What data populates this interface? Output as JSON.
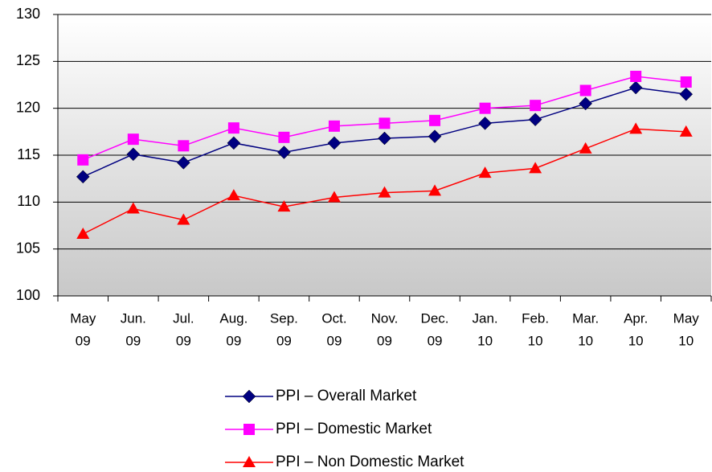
{
  "chart_data": {
    "type": "line",
    "categories": [
      [
        "May",
        "09"
      ],
      [
        "Jun.",
        "09"
      ],
      [
        "Jul.",
        "09"
      ],
      [
        "Aug.",
        "09"
      ],
      [
        "Sep.",
        "09"
      ],
      [
        "Oct.",
        "09"
      ],
      [
        "Nov.",
        "09"
      ],
      [
        "Dec.",
        "09"
      ],
      [
        "Jan.",
        "10"
      ],
      [
        "Feb.",
        "10"
      ],
      [
        "Mar.",
        "10"
      ],
      [
        "Apr.",
        "10"
      ],
      [
        "May",
        "10"
      ]
    ],
    "series": [
      {
        "name": "PPI – Overall Market",
        "color": "#000080",
        "marker": "diamond",
        "values": [
          112.7,
          115.1,
          114.2,
          116.3,
          115.3,
          116.3,
          116.8,
          117.0,
          118.4,
          118.8,
          120.5,
          122.2,
          121.5
        ]
      },
      {
        "name": "PPI – Domestic Market",
        "color": "#ff00ff",
        "marker": "square",
        "values": [
          114.5,
          116.7,
          116.0,
          117.9,
          116.9,
          118.1,
          118.4,
          118.7,
          120.0,
          120.3,
          121.9,
          123.4,
          122.8
        ]
      },
      {
        "name": "PPI – Non Domestic Market",
        "color": "#ff0000",
        "marker": "triangle",
        "values": [
          106.6,
          109.3,
          108.1,
          110.7,
          109.5,
          110.5,
          111.0,
          111.2,
          113.1,
          113.6,
          115.7,
          117.8,
          117.5
        ]
      }
    ],
    "ylim": [
      100,
      130
    ],
    "yticks": [
      100,
      105,
      110,
      115,
      120,
      125,
      130
    ],
    "grid": true,
    "legend": "bottom"
  }
}
